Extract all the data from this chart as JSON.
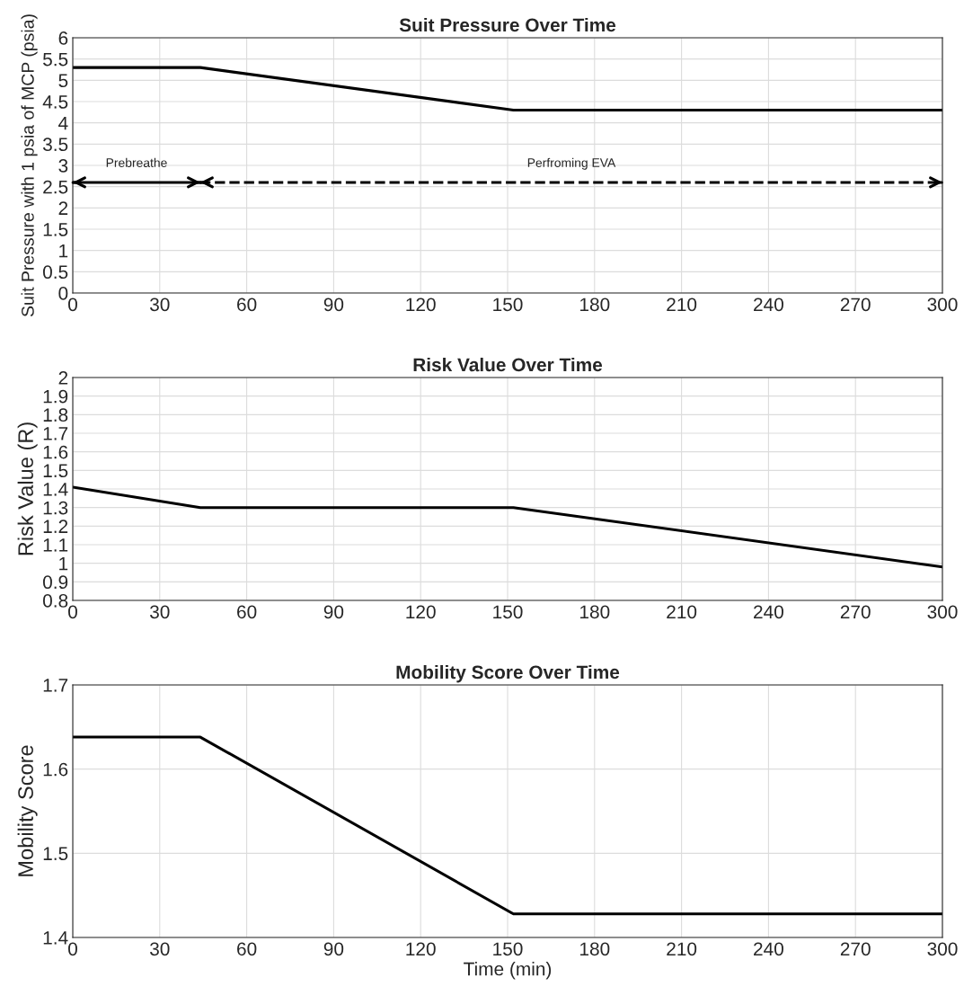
{
  "chart_data": [
    {
      "type": "line",
      "title": "Suit Pressure Over Time",
      "ylabel": "Suit Pressure with 1 psia of MCP (psia)",
      "xlim": [
        0,
        300
      ],
      "xticks": [
        0,
        30,
        60,
        90,
        120,
        150,
        180,
        210,
        240,
        270,
        300
      ],
      "ylim": [
        0,
        6
      ],
      "yticks": [
        0,
        0.5,
        1,
        1.5,
        2,
        2.5,
        3,
        3.5,
        4,
        4.5,
        5,
        5.5,
        6
      ],
      "grid": true,
      "line_style": "solid",
      "series": [
        {
          "color": "#000000",
          "x": [
            0,
            44,
            152,
            300
          ],
          "values": [
            5.3,
            5.3,
            4.3,
            4.3
          ]
        },
        {
          "type": "line",
          "name": "Prebreathe",
          "color": "#000000",
          "line_style": "solid",
          "x": [
            0,
            44
          ],
          "values": [
            2.6,
            2.6
          ]
        },
        {
          "type": "line",
          "name": "Perfroming EVA",
          "color": "#000000",
          "line_style": "dashed",
          "x": [
            44,
            300
          ],
          "values": [
            2.6,
            2.6
          ]
        }
      ]
    },
    {
      "type": "line",
      "title": "Risk Value Over Time",
      "ylabel": "Risk Value (R)",
      "xlim": [
        0,
        300
      ],
      "xticks": [
        0,
        30,
        60,
        90,
        120,
        150,
        180,
        210,
        240,
        270,
        300
      ],
      "ylim": [
        0.8,
        2
      ],
      "yticks": [
        0.8,
        0.9,
        1,
        1.1,
        1.2,
        1.3,
        1.4,
        1.5,
        1.6,
        1.7,
        1.8,
        1.9,
        2
      ],
      "grid": true,
      "line_style": "solid",
      "series": [
        {
          "color": "#000000",
          "x": [
            0,
            44,
            152,
            300
          ],
          "values": [
            1.41,
            1.3,
            1.3,
            0.98
          ]
        }
      ]
    },
    {
      "type": "line",
      "title": "Mobility Score Over Time",
      "xlabel": "Time (min)",
      "ylabel": "Mobility Score",
      "xlim": [
        0,
        300
      ],
      "xticks": [
        0,
        30,
        60,
        90,
        120,
        150,
        180,
        210,
        240,
        270,
        300
      ],
      "ylim": [
        1.4,
        1.7
      ],
      "yticks": [
        1.4,
        1.5,
        1.6,
        1.7
      ],
      "grid": true,
      "line_style": "solid",
      "series": [
        {
          "color": "#000000",
          "x": [
            0,
            44,
            152,
            300
          ],
          "values": [
            1.638,
            1.638,
            1.428,
            1.428
          ]
        }
      ]
    }
  ]
}
